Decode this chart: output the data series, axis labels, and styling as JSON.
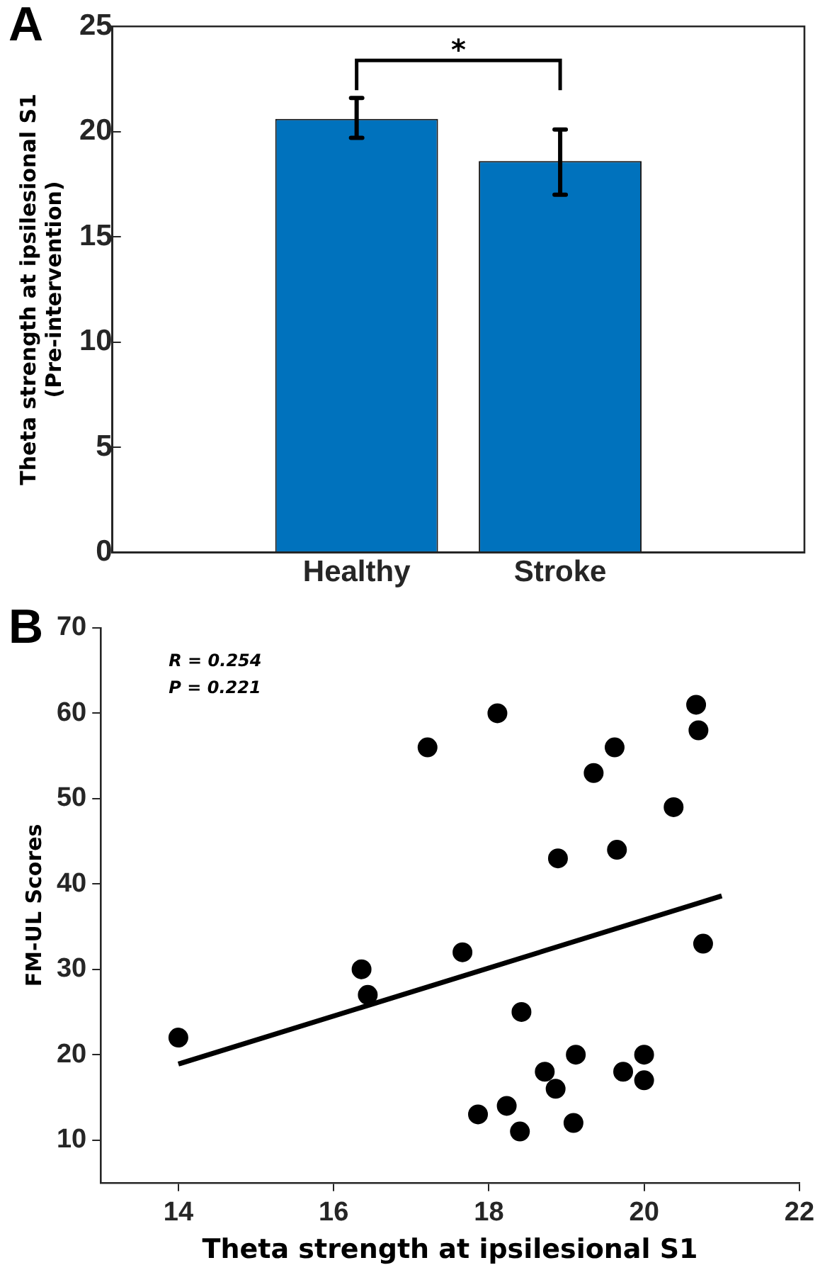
{
  "chart_data": [
    {
      "type": "bar",
      "title": "A",
      "categories": [
        "Healthy",
        "Stroke"
      ],
      "values": [
        20.6,
        18.6
      ],
      "errors": [
        [
          19.7,
          21.6
        ],
        [
          17.0,
          20.1
        ]
      ],
      "color": "#0072bd",
      "ylabel": "Theta strength at ipsilesional S1\n(Pre-intervention)",
      "ylim": [
        0,
        25
      ],
      "yticks": [
        0,
        5,
        10,
        15,
        20,
        25
      ],
      "annotations": [
        "*"
      ],
      "grid": false
    },
    {
      "type": "scatter",
      "title": "B",
      "xlabel": "Theta strength at ipsilesional S1",
      "ylabel": "FM-UL Scores",
      "xlim": [
        13,
        22
      ],
      "xticks": [
        14,
        16,
        18,
        20,
        22
      ],
      "ylim": [
        5,
        70
      ],
      "yticks": [
        10,
        20,
        30,
        40,
        50,
        60,
        70
      ],
      "grid": false,
      "annotations": [
        "R = 0.254",
        "P = 0.221"
      ],
      "series": [
        {
          "type": "scatter",
          "color": "#000000",
          "marker": "circle",
          "x": [
            14.0,
            16.36,
            16.44,
            17.21,
            17.66,
            18.11,
            17.86,
            18.23,
            18.4,
            18.42,
            18.72,
            18.86,
            18.89,
            19.09,
            19.12,
            19.35,
            19.62,
            19.65,
            19.73,
            20.0,
            20.0,
            20.38,
            20.67,
            20.7,
            20.76
          ],
          "values": [
            22,
            30,
            27,
            56,
            32,
            60,
            13,
            14,
            11,
            25,
            18,
            16,
            43,
            12,
            20,
            53,
            56,
            44,
            18,
            20,
            17,
            49,
            61,
            58,
            33
          ]
        },
        {
          "type": "line",
          "color": "#000000",
          "marker": "none",
          "x": [
            14,
            21
          ],
          "values": [
            18.9,
            38.6
          ]
        }
      ]
    }
  ]
}
